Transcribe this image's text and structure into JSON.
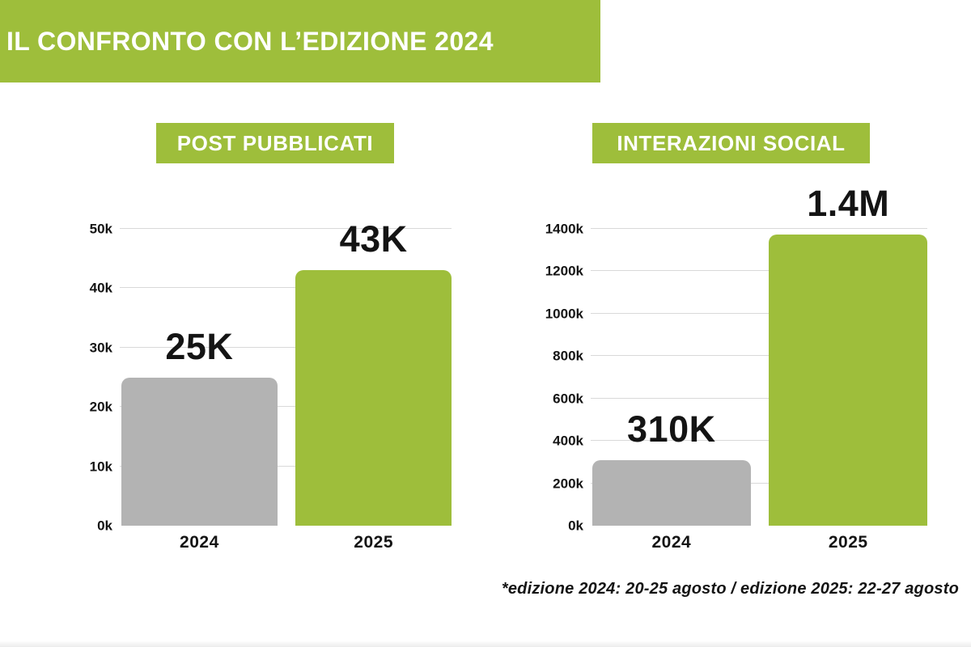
{
  "page": {
    "title": "IL CONFRONTO CON L’EDIZIONE 2024",
    "footnote": "*edizione 2024: 20-25 agosto / edizione 2025: 22-27 agosto"
  },
  "colors": {
    "accent_green": "#9ebe3b",
    "bar_gray": "#b3b3b3",
    "text": "#141414",
    "gridline": "#d9d9d9",
    "banner_text": "#ffffff"
  },
  "chart_data": [
    {
      "type": "bar",
      "title": "POST PUBBLICATI",
      "categories": [
        "2024",
        "2025"
      ],
      "values": [
        25000,
        43000
      ],
      "value_labels": [
        "25K",
        "43K"
      ],
      "bar_colors": [
        "#b3b3b3",
        "#9ebe3b"
      ],
      "ylabel": "",
      "xlabel": "",
      "ylim": [
        0,
        50000
      ],
      "yticks": [
        0,
        10000,
        20000,
        30000,
        40000,
        50000
      ],
      "ytick_labels": [
        "0k",
        "10k",
        "20k",
        "30k",
        "40k",
        "50k"
      ],
      "grid": true,
      "legend": "none"
    },
    {
      "type": "bar",
      "title": "INTERAZIONI SOCIAL",
      "categories": [
        "2024",
        "2025"
      ],
      "values": [
        310000,
        1375000
      ],
      "value_labels": [
        "310K",
        "1.4M"
      ],
      "bar_colors": [
        "#b3b3b3",
        "#9ebe3b"
      ],
      "ylabel": "",
      "xlabel": "",
      "ylim": [
        0,
        1400000
      ],
      "yticks": [
        0,
        200000,
        400000,
        600000,
        800000,
        1000000,
        1200000,
        1400000
      ],
      "ytick_labels": [
        "0k",
        "200k",
        "400k",
        "600k",
        "800k",
        "1000k",
        "1200k",
        "1400k"
      ],
      "grid": true,
      "legend": "none"
    }
  ]
}
